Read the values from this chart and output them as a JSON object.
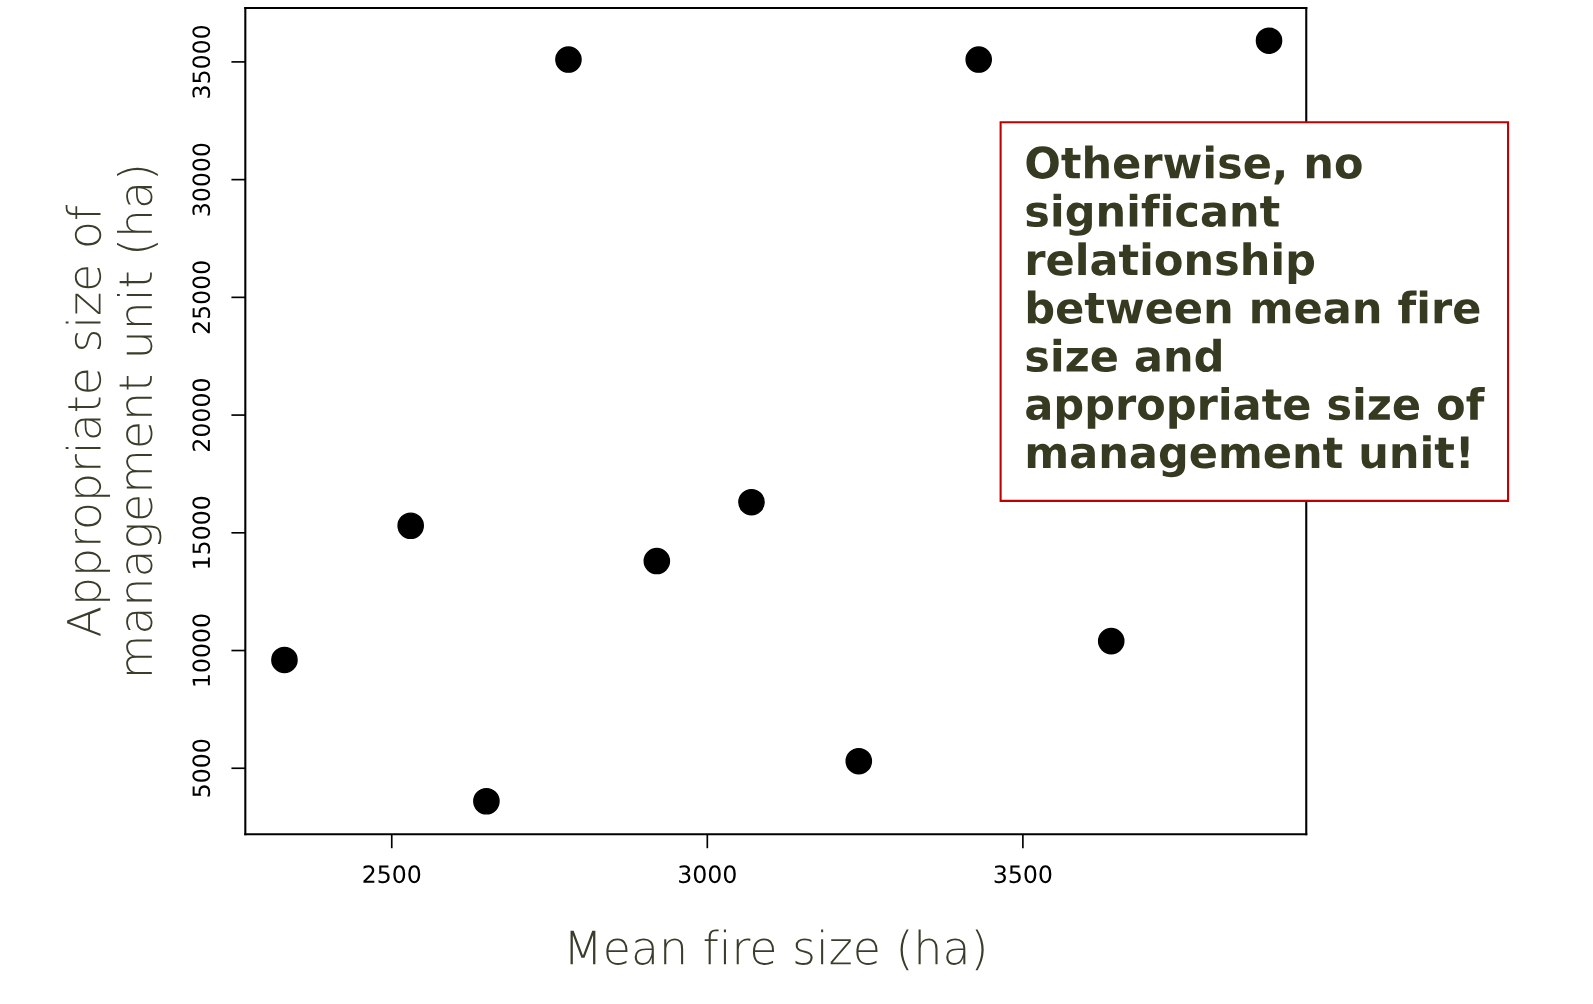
{
  "chart_data": {
    "type": "scatter",
    "xlabel": "Mean fire size (ha)",
    "ylabel": "Appropriate size of\nmanagement unit (ha)",
    "x": [
      2330,
      2530,
      2650,
      2780,
      2920,
      3070,
      3240,
      3430,
      3640,
      3890
    ],
    "series": [
      {
        "color": "#000000",
        "values": [
          9600,
          15300,
          3600,
          35100,
          13800,
          16300,
          5300,
          35100,
          10400,
          35900
        ]
      }
    ],
    "xlim": [
      2268,
      3949
    ],
    "xticks": [
      2500,
      3000,
      3500
    ],
    "ylim": [
      2194,
      37288
    ],
    "yticks": [
      5000,
      10000,
      15000,
      20000,
      25000,
      30000,
      35000
    ],
    "marker": "circle",
    "grid": false,
    "annotations": [
      "Otherwise, no\nsignificant\nrelationship\nbetween mean fire\nsize and\nappropriate size of\nmanagement unit!"
    ]
  }
}
